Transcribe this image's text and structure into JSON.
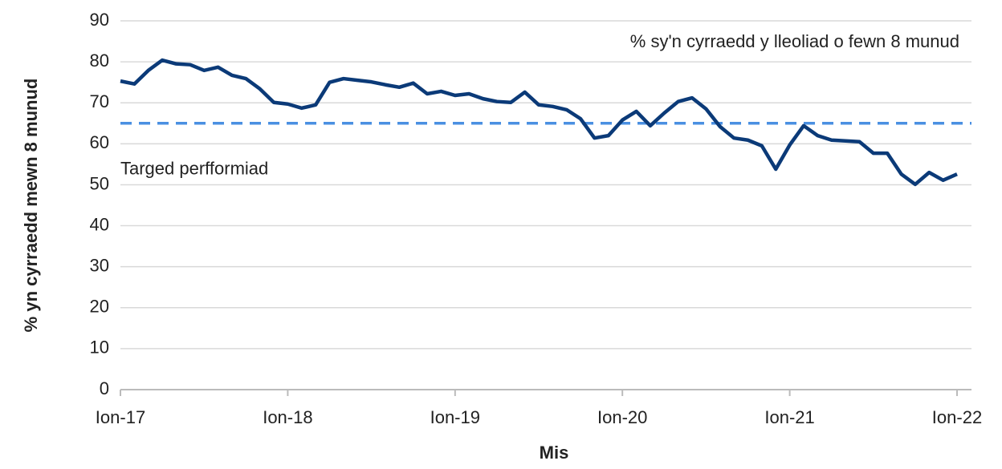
{
  "chart_data": {
    "type": "line",
    "x_label": "Mis",
    "y_label": "% yn cyrraedd mewn 8 munud",
    "categories": [
      "Ion-17",
      null,
      null,
      null,
      null,
      null,
      null,
      null,
      null,
      null,
      null,
      null,
      "Ion-18",
      null,
      null,
      null,
      null,
      null,
      null,
      null,
      null,
      null,
      null,
      null,
      "Ion-19",
      null,
      null,
      null,
      null,
      null,
      null,
      null,
      null,
      null,
      null,
      null,
      "Ion-20",
      null,
      null,
      null,
      null,
      null,
      null,
      null,
      null,
      null,
      null,
      null,
      "Ion-21",
      null,
      null,
      null,
      null,
      null,
      null,
      null,
      null,
      null,
      null,
      null,
      "Ion-22"
    ],
    "series": [
      {
        "name": "% sy'n cyrraedd y lleoliad o fewn 8 munud",
        "color": "#0b3a78",
        "values": [
          75.3,
          74.6,
          77.9,
          80.4,
          79.5,
          79.3,
          77.9,
          78.7,
          76.7,
          75.9,
          73.4,
          70.1,
          69.7,
          68.7,
          69.5,
          75.0,
          75.9,
          75.5,
          75.1,
          74.4,
          73.8,
          74.8,
          72.2,
          72.8,
          71.8,
          72.2,
          71.0,
          70.3,
          70.1,
          72.6,
          69.5,
          69.1,
          68.3,
          66.1,
          61.4,
          62.0,
          65.8,
          67.9,
          64.4,
          67.5,
          70.3,
          71.2,
          68.5,
          64.2,
          61.4,
          60.9,
          59.5,
          53.8,
          59.7,
          64.4,
          62.0,
          60.9,
          60.7,
          60.5,
          57.7,
          57.7,
          52.6,
          50.1,
          53.0,
          51.1,
          52.6
        ]
      }
    ],
    "reference_lines": [
      {
        "value": 65,
        "label": "Targed perfformiad",
        "color": "#4a90e2",
        "dashed": true
      }
    ],
    "ylim": [
      0,
      90
    ],
    "yticks": [
      0,
      10,
      20,
      30,
      40,
      50,
      60,
      70,
      80,
      90
    ],
    "grid": true
  }
}
